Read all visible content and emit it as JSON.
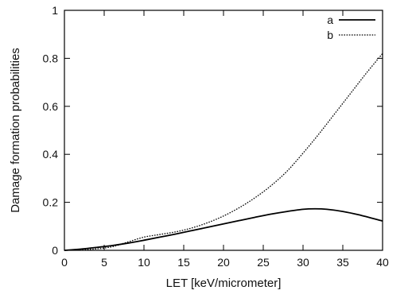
{
  "chart_data": {
    "type": "line",
    "title": "",
    "xlabel": "LET [keV/micrometer]",
    "ylabel": "Damage formation probabilities",
    "xlim": [
      0,
      40
    ],
    "ylim": [
      0,
      1
    ],
    "xticks": [
      0,
      5,
      10,
      15,
      20,
      25,
      30,
      35,
      40
    ],
    "yticks": [
      0,
      0.2,
      0.4,
      0.6,
      0.8,
      1
    ],
    "ytick_labels": [
      "0",
      "0.2",
      "0.4",
      "0.6",
      "0.8",
      "1"
    ],
    "grid": false,
    "legend_position": "top-right",
    "series": [
      {
        "name": "a",
        "style": "solid",
        "color": "#000000",
        "x": [
          0,
          2,
          4,
          6,
          8,
          10,
          12,
          14,
          16,
          18,
          20,
          22,
          24,
          26,
          28,
          30,
          31.5,
          33,
          35,
          37,
          40
        ],
        "y": [
          0,
          0.005,
          0.012,
          0.02,
          0.03,
          0.042,
          0.055,
          0.068,
          0.082,
          0.096,
          0.11,
          0.124,
          0.138,
          0.151,
          0.162,
          0.171,
          0.173,
          0.171,
          0.162,
          0.148,
          0.122
        ]
      },
      {
        "name": "b",
        "style": "dotted",
        "color": "#000000",
        "x": [
          0,
          2,
          4,
          6,
          8,
          10,
          12,
          14,
          16,
          18,
          20,
          22,
          24,
          26,
          28,
          30,
          32,
          34,
          36,
          38,
          40
        ],
        "y": [
          0,
          0.002,
          0.006,
          0.015,
          0.035,
          0.055,
          0.066,
          0.077,
          0.093,
          0.115,
          0.143,
          0.178,
          0.22,
          0.27,
          0.33,
          0.405,
          0.485,
          0.57,
          0.655,
          0.74,
          0.82
        ]
      }
    ]
  }
}
